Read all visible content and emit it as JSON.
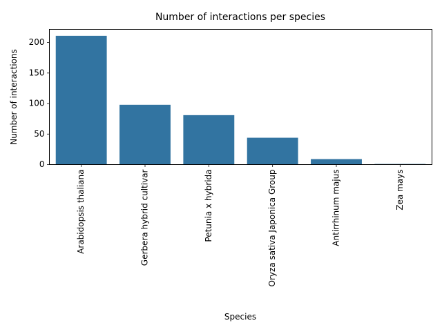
{
  "chart_data": {
    "type": "bar",
    "title": "Number of interactions per species",
    "xlabel": "Species",
    "ylabel": "Number of interactions",
    "categories": [
      "Arabidopsis thaliana",
      "Gerbera hybrid cultivar",
      "Petunia x hybrida",
      "Oryza sativa Japonica Group",
      "Antirrhinum majus",
      "Zea mays"
    ],
    "values": [
      211,
      98,
      81,
      44,
      9,
      1
    ],
    "ylim": [
      0,
      221.6
    ],
    "yticks": [
      0,
      50,
      100,
      150,
      200
    ],
    "grid": false,
    "legend": "none",
    "bar_color": "#3274a1"
  }
}
